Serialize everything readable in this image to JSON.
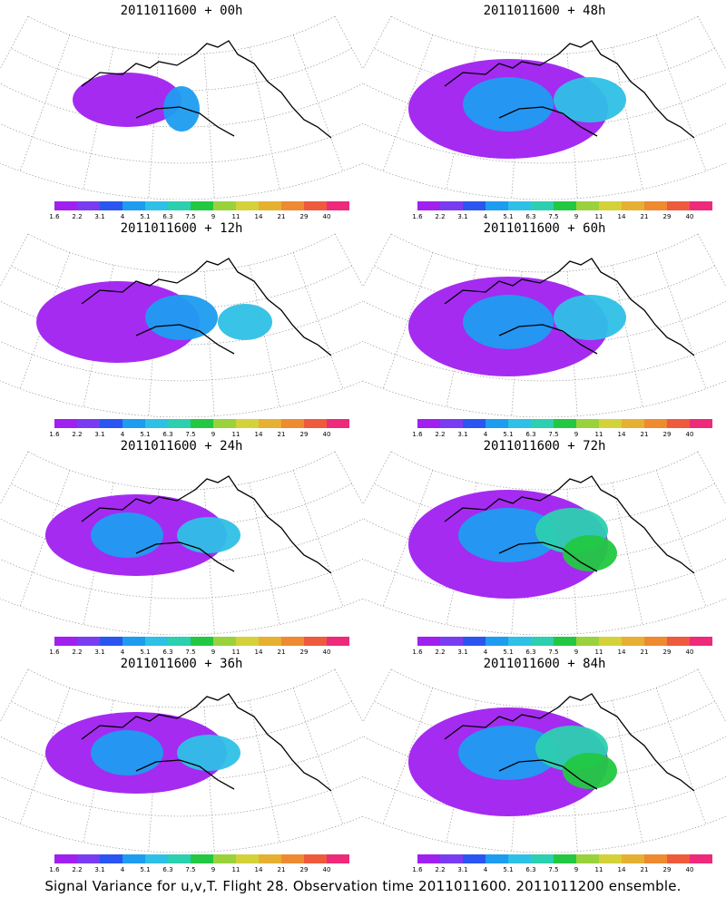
{
  "caption": "Signal Variance for u,v,T. Flight 28. Observation time 2011011600. 2011011200 ensemble.",
  "colorbar": {
    "labels": [
      "1.6",
      "2.2",
      "3.1",
      "4",
      "5.1",
      "6.3",
      "7.5",
      "9",
      "11",
      "14",
      "21",
      "29",
      "40"
    ],
    "colors": [
      "#a020f0",
      "#7a3cf0",
      "#2a55f0",
      "#1e9cf0",
      "#2ec0e6",
      "#2ccfb0",
      "#22c842",
      "#9ad23c",
      "#d4d23a",
      "#e6b032",
      "#ee8a30",
      "#ee5a3c",
      "#ee2a7a"
    ]
  },
  "panels": [
    {
      "title": "2011011600 + 00h",
      "lead_hours": 0
    },
    {
      "title": "2011011600 + 48h",
      "lead_hours": 48
    },
    {
      "title": "2011011600 + 12h",
      "lead_hours": 12
    },
    {
      "title": "2011011600 + 60h",
      "lead_hours": 60
    },
    {
      "title": "2011011600 + 24h",
      "lead_hours": 24
    },
    {
      "title": "2011011600 + 72h",
      "lead_hours": 72
    },
    {
      "title": "2011011600 + 36h",
      "lead_hours": 36
    },
    {
      "title": "2011011600 + 84h",
      "lead_hours": 84
    }
  ]
}
